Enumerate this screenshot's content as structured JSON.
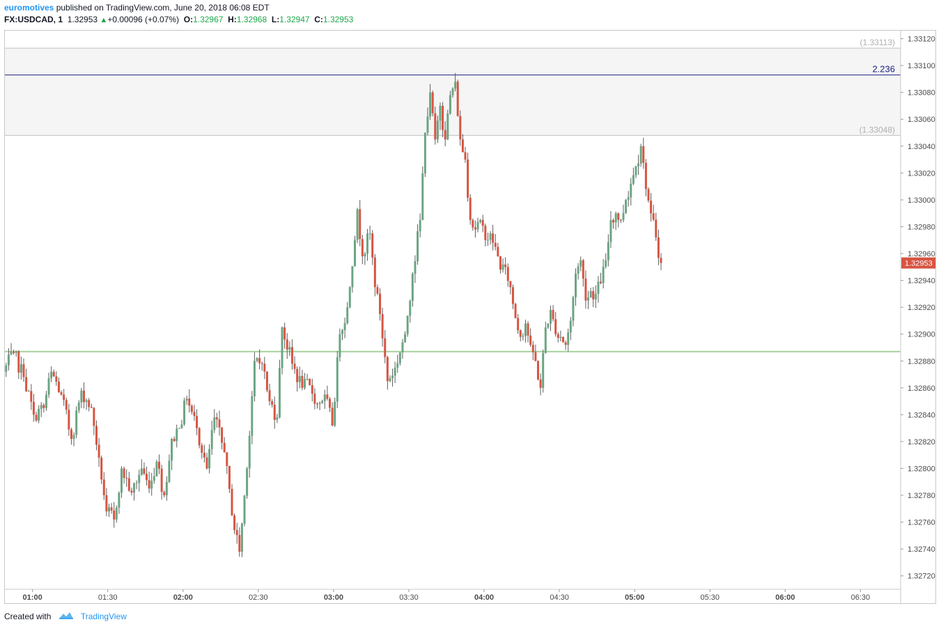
{
  "header": {
    "author": "euromotives",
    "published": " published on TradingView.com, June 20, 2018 06:08 EDT",
    "symbol": "FX:USDCAD, 1",
    "last": "1.32953",
    "change": "+0.00096 (+0.07%)",
    "o_label": "O:",
    "o_value": "1.32967",
    "h_label": "H:",
    "h_value": "1.32968",
    "l_label": "L:",
    "l_value": "1.32947",
    "c_label": "C:",
    "c_value": "1.32953"
  },
  "footer": {
    "created_with": "Created with",
    "brand": "TradingView"
  },
  "colors": {
    "up": "#6ba583",
    "down": "#d75442",
    "wick": "#5d5d5d",
    "support_line": "#a5d09b",
    "fib_line": "#1a237e",
    "zone_fill": "#f5f5f5",
    "grid_line": "#c0c0c0",
    "price_tag": "#d75442"
  },
  "chart_data": {
    "type": "candlestick",
    "symbol": "FX:USDCAD",
    "interval": "1",
    "ylim": [
      1.3271,
      1.33126
    ],
    "x_ticks": [
      {
        "label": "01:00",
        "minute": 60,
        "bold": true
      },
      {
        "label": "01:30",
        "minute": 90,
        "bold": false
      },
      {
        "label": "02:00",
        "minute": 120,
        "bold": true
      },
      {
        "label": "02:30",
        "minute": 150,
        "bold": false
      },
      {
        "label": "03:00",
        "minute": 180,
        "bold": true
      },
      {
        "label": "03:30",
        "minute": 210,
        "bold": false
      },
      {
        "label": "04:00",
        "minute": 240,
        "bold": true
      },
      {
        "label": "04:30",
        "minute": 270,
        "bold": false
      },
      {
        "label": "05:00",
        "minute": 300,
        "bold": true
      },
      {
        "label": "05:30",
        "minute": 330,
        "bold": false
      },
      {
        "label": "06:00",
        "minute": 360,
        "bold": true
      },
      {
        "label": "06:30",
        "minute": 390,
        "bold": false
      }
    ],
    "x_range_minutes": [
      49,
      406
    ],
    "y_ticks": [
      "1.33120",
      "1.33100",
      "1.33080",
      "1.33060",
      "1.33040",
      "1.33020",
      "1.33000",
      "1.32980",
      "1.32960",
      "1.32940",
      "1.32920",
      "1.32900",
      "1.32880",
      "1.32860",
      "1.32840",
      "1.32820",
      "1.32800",
      "1.32780",
      "1.32760",
      "1.32740",
      "1.32720"
    ],
    "last_price": "1.32953",
    "horizontal_lines": [
      {
        "price": 1.33113,
        "label": "(1.33113)",
        "style": "fib-level"
      },
      {
        "price": 1.33093,
        "label": "2.236",
        "style": "fib-extension"
      },
      {
        "price": 1.33048,
        "label": "(1.33048)",
        "style": "fib-level"
      },
      {
        "price": 1.32887,
        "label": "",
        "style": "support"
      }
    ],
    "anchors": [
      [
        49,
        1.32872
      ],
      [
        53,
        1.32886
      ],
      [
        57,
        1.32868
      ],
      [
        61,
        1.3284
      ],
      [
        65,
        1.32845
      ],
      [
        68,
        1.32872
      ],
      [
        72,
        1.32855
      ],
      [
        76,
        1.32822
      ],
      [
        80,
        1.32858
      ],
      [
        84,
        1.32845
      ],
      [
        87,
        1.32808
      ],
      [
        90,
        1.32768
      ],
      [
        93,
        1.32762
      ],
      [
        96,
        1.328
      ],
      [
        100,
        1.32782
      ],
      [
        104,
        1.328
      ],
      [
        107,
        1.32785
      ],
      [
        110,
        1.32805
      ],
      [
        113,
        1.3278
      ],
      [
        116,
        1.32822
      ],
      [
        119,
        1.3283
      ],
      [
        122,
        1.32852
      ],
      [
        126,
        1.3283
      ],
      [
        130,
        1.328
      ],
      [
        133,
        1.32838
      ],
      [
        137,
        1.32812
      ],
      [
        140,
        1.32765
      ],
      [
        143,
        1.32738
      ],
      [
        146,
        1.328
      ],
      [
        149,
        1.3288
      ],
      [
        152,
        1.32878
      ],
      [
        155,
        1.3285
      ],
      [
        158,
        1.32838
      ],
      [
        160,
        1.32905
      ],
      [
        164,
        1.32878
      ],
      [
        168,
        1.3286
      ],
      [
        171,
        1.32862
      ],
      [
        174,
        1.32848
      ],
      [
        177,
        1.32855
      ],
      [
        180,
        1.32832
      ],
      [
        183,
        1.329
      ],
      [
        186,
        1.3292
      ],
      [
        190,
        1.32993
      ],
      [
        192,
        1.32958
      ],
      [
        195,
        1.32975
      ],
      [
        197,
        1.32935
      ],
      [
        199,
        1.32915
      ],
      [
        202,
        1.32865
      ],
      [
        205,
        1.32875
      ],
      [
        209,
        1.329
      ],
      [
        212,
        1.32945
      ],
      [
        215,
        1.32985
      ],
      [
        217,
        1.3305
      ],
      [
        219,
        1.3308
      ],
      [
        221,
        1.33045
      ],
      [
        223,
        1.3307
      ],
      [
        225,
        1.33045
      ],
      [
        227,
        1.33078
      ],
      [
        229,
        1.33088
      ],
      [
        231,
        1.33045
      ],
      [
        233,
        1.3303
      ],
      [
        235,
        1.32985
      ],
      [
        237,
        1.32978
      ],
      [
        239,
        1.32985
      ],
      [
        241,
        1.3297
      ],
      [
        243,
        1.32975
      ],
      [
        245,
        1.32965
      ],
      [
        247,
        1.32948
      ],
      [
        249,
        1.3295
      ],
      [
        251,
        1.32935
      ],
      [
        253,
        1.32912
      ],
      [
        255,
        1.32898
      ],
      [
        257,
        1.32908
      ],
      [
        259,
        1.32892
      ],
      [
        261,
        1.3288
      ],
      [
        263,
        1.3286
      ],
      [
        265,
        1.32905
      ],
      [
        267,
        1.32918
      ],
      [
        269,
        1.329
      ],
      [
        271,
        1.32898
      ],
      [
        273,
        1.32892
      ],
      [
        275,
        1.3291
      ],
      [
        277,
        1.32945
      ],
      [
        279,
        1.32955
      ],
      [
        281,
        1.32925
      ],
      [
        283,
        1.32932
      ],
      [
        285,
        1.3293
      ],
      [
        287,
        1.32938
      ],
      [
        289,
        1.32955
      ],
      [
        291,
        1.32985
      ],
      [
        293,
        1.3299
      ],
      [
        295,
        1.32985
      ],
      [
        297,
        1.33
      ],
      [
        299,
        1.33012
      ],
      [
        301,
        1.33025
      ],
      [
        303,
        1.3304
      ],
      [
        305,
        1.33008
      ],
      [
        307,
        1.3299
      ],
      [
        309,
        1.32972
      ],
      [
        311,
        1.32953
      ]
    ]
  }
}
